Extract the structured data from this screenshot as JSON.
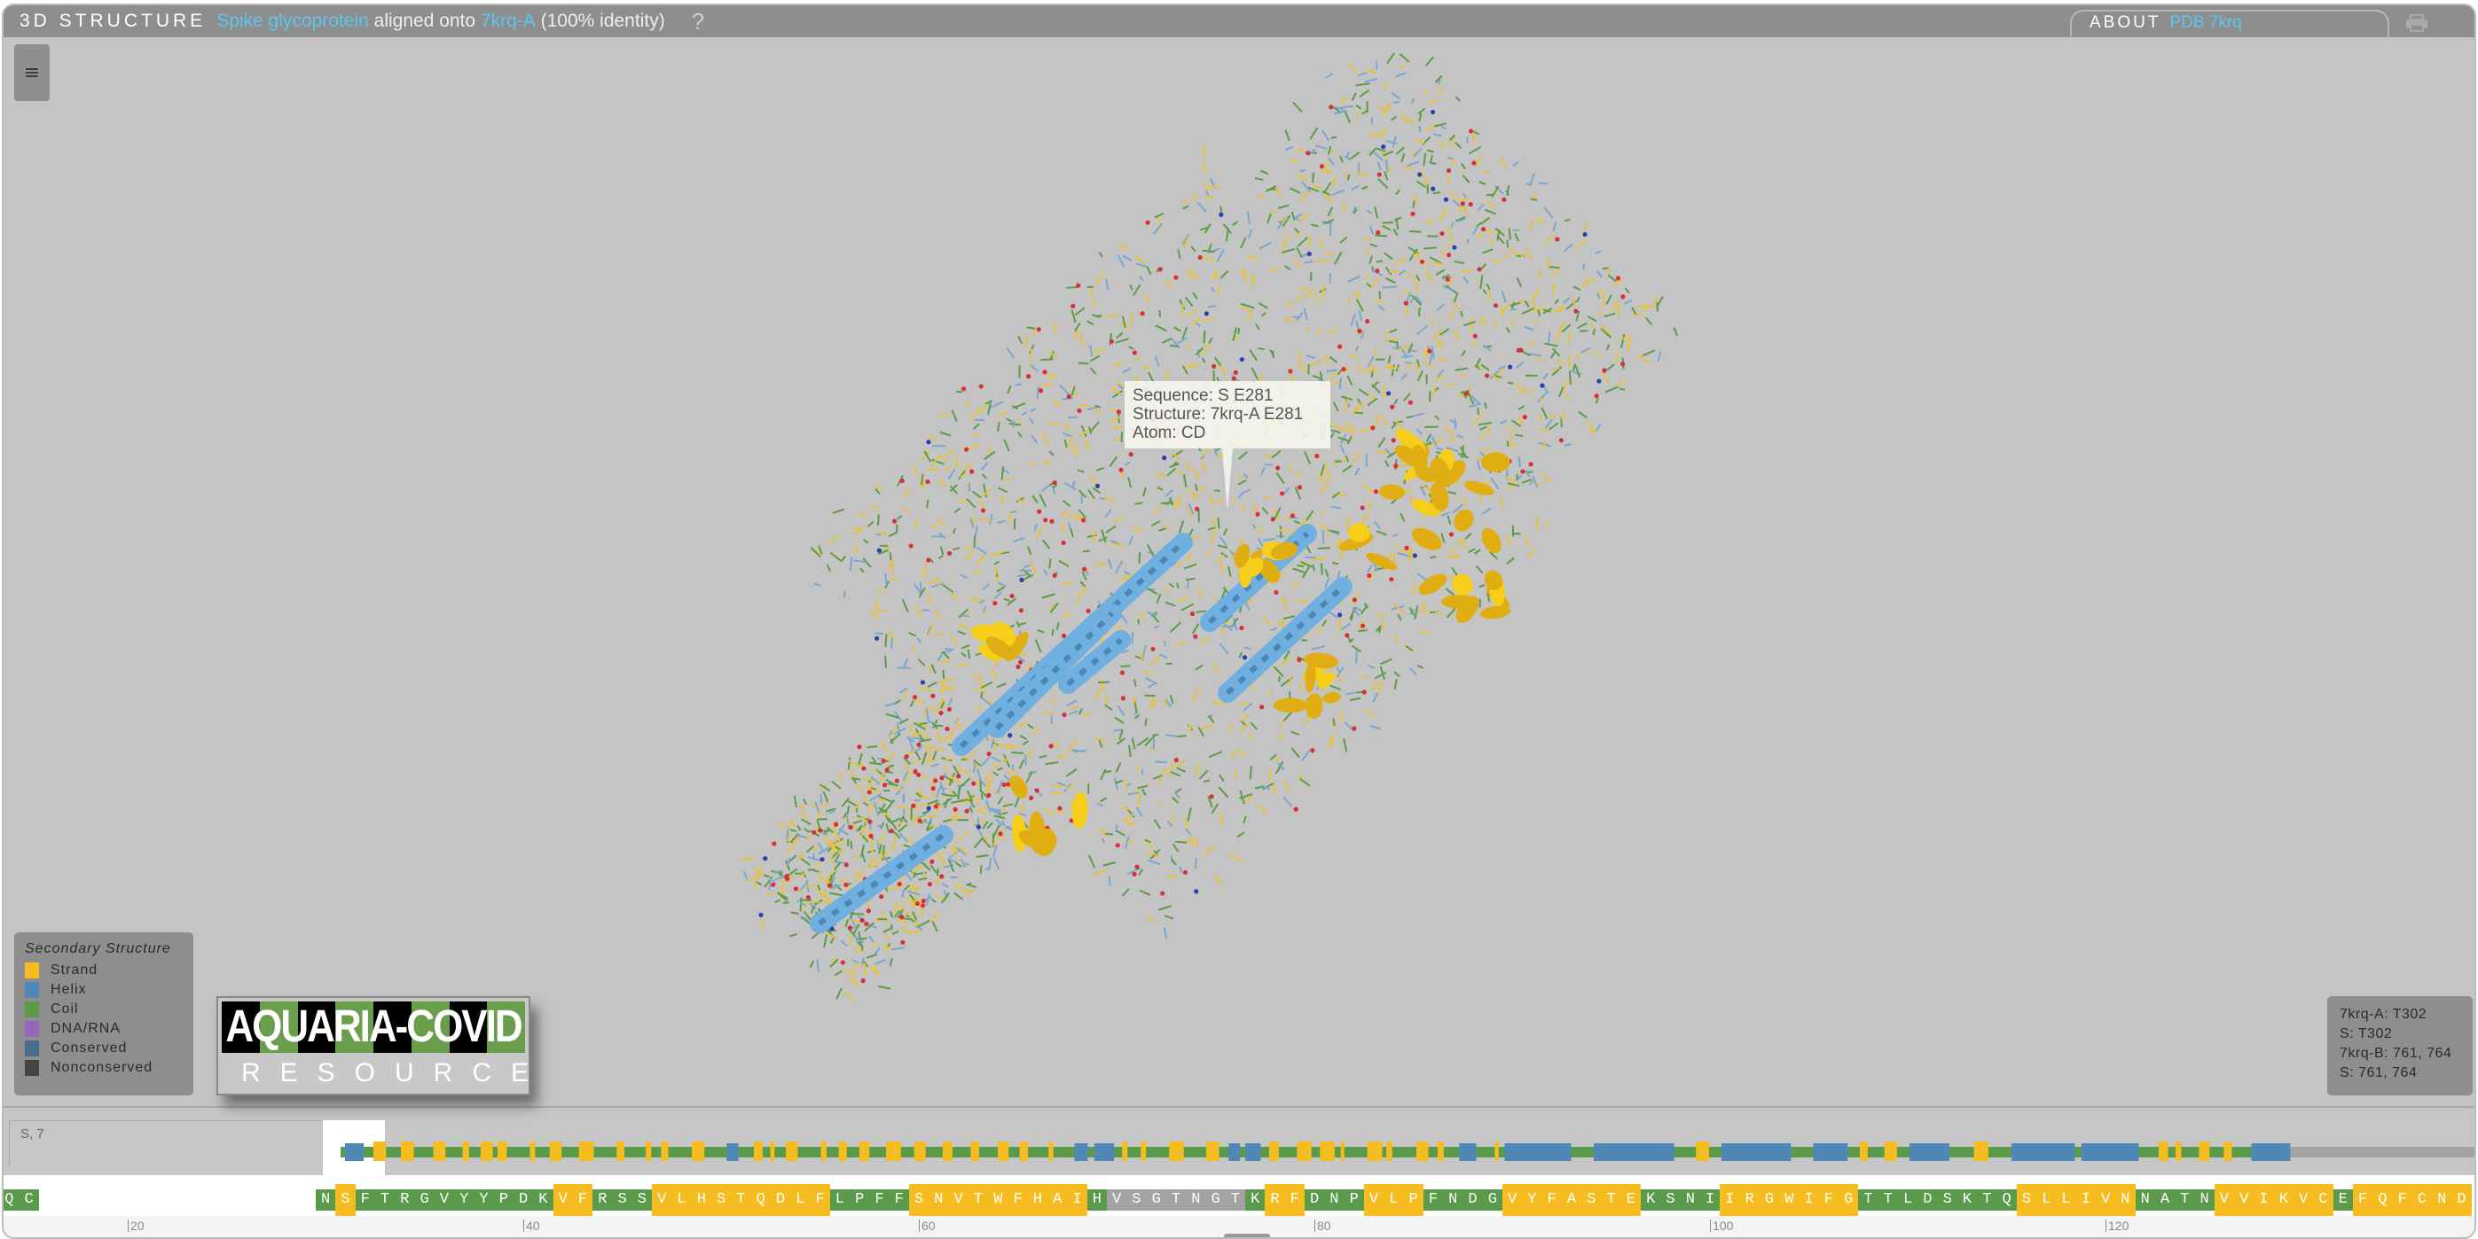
{
  "header": {
    "section": "3D STRUCTURE",
    "protein": "Spike glycoprotein",
    "aligned_text": "aligned onto",
    "structure": "7krq-A",
    "identity": "(100% identity)",
    "help": "?",
    "about_label": "ABOUT",
    "about_id": "PDB 7krq"
  },
  "menu_icon": "≡",
  "tooltip": {
    "line1": "Sequence: S E281",
    "line2": "Structure: 7krq-A E281",
    "line3": "Atom: CD"
  },
  "legend": {
    "title": "Secondary Structure",
    "items": [
      {
        "label": "Strand",
        "color": "#f5bd1f"
      },
      {
        "label": "Helix",
        "color": "#4f88b7"
      },
      {
        "label": "Coil",
        "color": "#5b9a4a"
      },
      {
        "label": "DNA/RNA",
        "color": "#9467bd"
      },
      {
        "label": "Conserved",
        "color": "#4a6b8a"
      },
      {
        "label": "Nonconserved",
        "color": "#444444"
      }
    ]
  },
  "info": [
    "7krq-A: T302",
    "S: T302",
    "7krq-B: 761, 764",
    "S: 761, 764"
  ],
  "track_tab_label": "S, 7",
  "colors": {
    "strand": "#f5bd1f",
    "helix": "#4f88b7",
    "coil": "#5b9a4a",
    "gray": "#a3a3a3",
    "accent": "#5cc6ee"
  },
  "sequence": [
    {
      "res": "QC",
      "type": "coil",
      "start": 14
    },
    {
      "res": "N",
      "type": "coil",
      "start": 30
    },
    {
      "res": "S",
      "type": "strand",
      "start": 31
    },
    {
      "res": "FTRGVYYPDK",
      "type": "coil",
      "start": 32
    },
    {
      "res": "VF",
      "type": "strand",
      "start": 42
    },
    {
      "res": "RSS",
      "type": "coil",
      "start": 44
    },
    {
      "res": "VLHSTQDLF",
      "type": "strand",
      "start": 47
    },
    {
      "res": "LPFF",
      "type": "coil",
      "start": 56
    },
    {
      "res": "SNVTWFHAI",
      "type": "strand",
      "start": 60
    },
    {
      "res": "H",
      "type": "coil",
      "start": 69
    },
    {
      "res": "VSGTNGT",
      "type": "gray",
      "start": 70
    },
    {
      "res": "K",
      "type": "coil",
      "start": 77
    },
    {
      "res": "RF",
      "type": "strand",
      "start": 78
    },
    {
      "res": "DNP",
      "type": "coil",
      "start": 80
    },
    {
      "res": "VLP",
      "type": "strand",
      "start": 83
    },
    {
      "res": "FNDG",
      "type": "coil",
      "start": 86
    },
    {
      "res": "VYFASTE",
      "type": "strand",
      "start": 90
    },
    {
      "res": "KSNI",
      "type": "coil",
      "start": 97
    },
    {
      "res": "IRGWIFG",
      "type": "strand",
      "start": 101
    },
    {
      "res": "TTLDSKTQ",
      "type": "coil",
      "start": 108
    },
    {
      "res": "SLLIVN",
      "type": "strand",
      "start": 116
    },
    {
      "res": "NATN",
      "type": "coil",
      "start": 122
    },
    {
      "res": "VVIKVC",
      "type": "strand",
      "start": 126
    },
    {
      "res": "E",
      "type": "coil",
      "start": 132
    },
    {
      "res": "FQFCND",
      "type": "strand",
      "start": 133
    }
  ],
  "ruler_ticks": [
    "20",
    "40",
    "60",
    "80",
    "100",
    "120"
  ],
  "logo": {
    "line1": "AQUARIA-COVID",
    "line2": "RESOURCE"
  }
}
